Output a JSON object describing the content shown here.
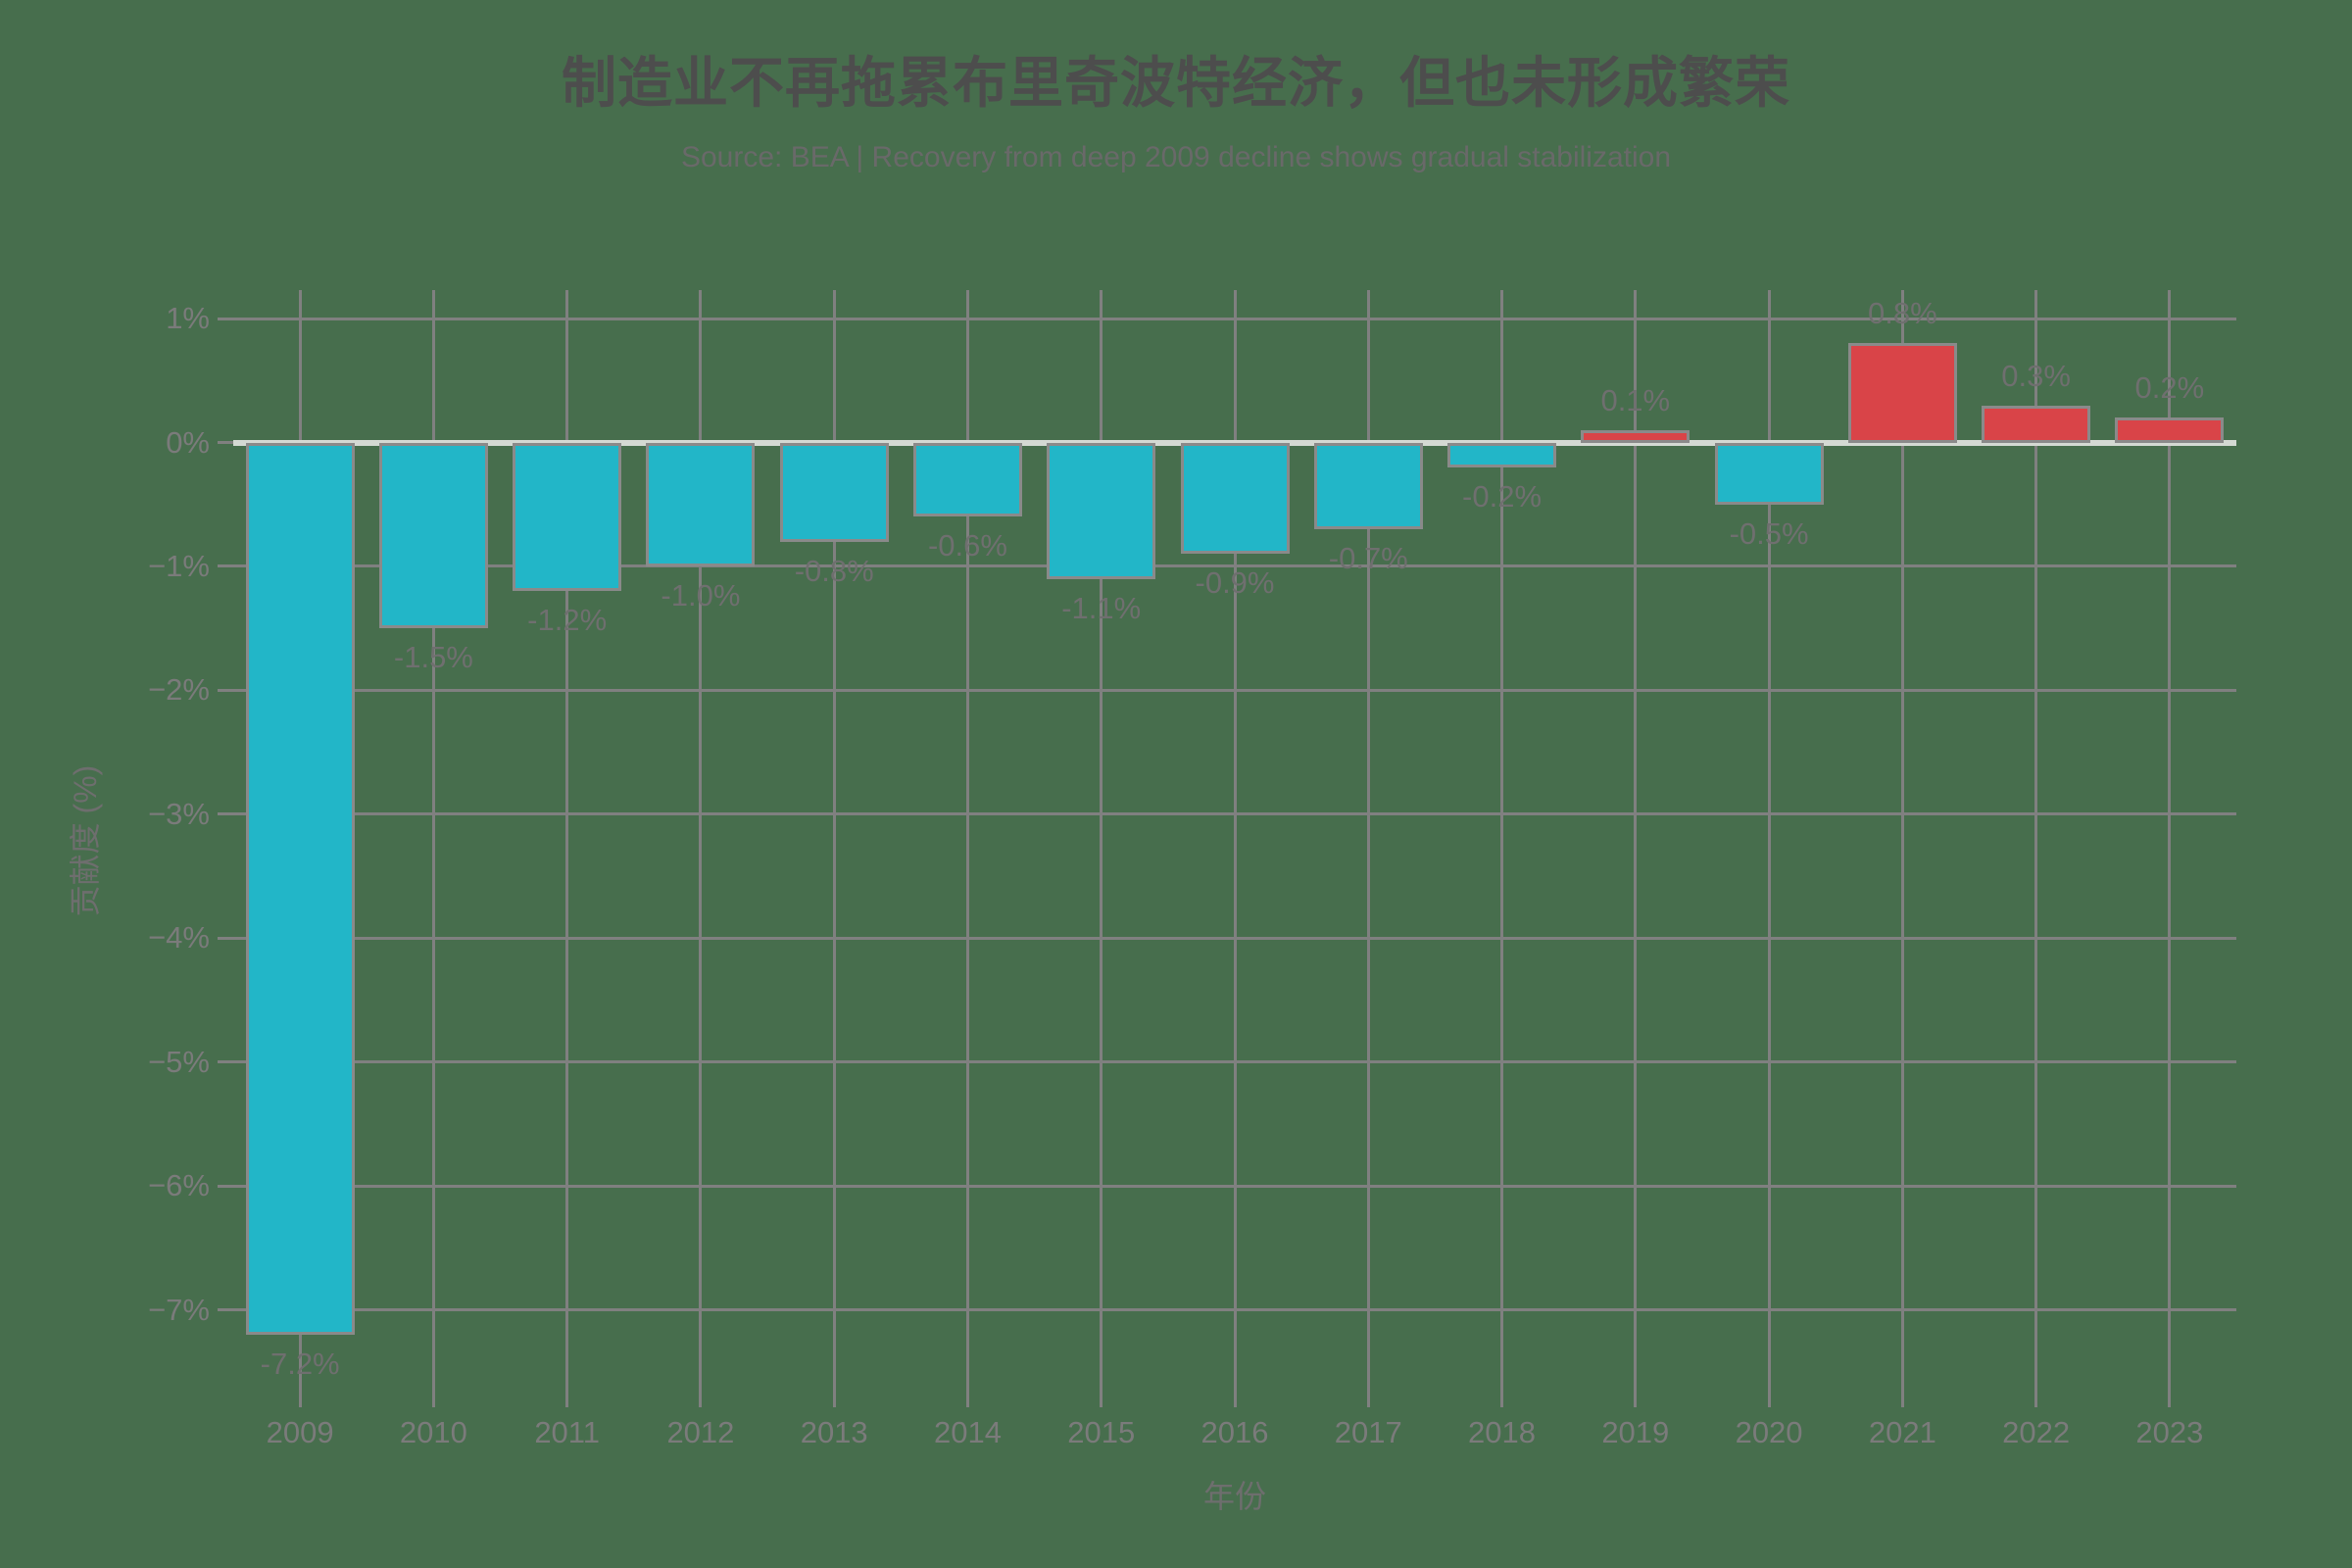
{
  "header": {
    "title": "制造业不再拖累布里奇波特经济，但也未形成繁荣",
    "subtitle": "Source: BEA | Recovery from deep 2009 decline shows gradual stabilization"
  },
  "chart_data": {
    "type": "bar",
    "title": "制造业不再拖累布里奇波特经济，但也未形成繁荣",
    "subtitle": "Source: BEA | Recovery from deep 2009 decline shows gradual stabilization",
    "xlabel": "年份",
    "ylabel": "贡献度 (%)",
    "categories": [
      "2009",
      "2010",
      "2011",
      "2012",
      "2013",
      "2014",
      "2015",
      "2016",
      "2017",
      "2018",
      "2019",
      "2020",
      "2021",
      "2022",
      "2023"
    ],
    "values": [
      -7.2,
      -1.5,
      -1.2,
      -1.0,
      -0.8,
      -0.6,
      -1.1,
      -0.9,
      -0.7,
      -0.2,
      0.1,
      -0.5,
      0.8,
      0.3,
      0.2
    ],
    "value_labels": [
      "-7.2%",
      "-1.5%",
      "-1.2%",
      "-1.0%",
      "-0.8%",
      "-0.6%",
      "-1.1%",
      "-0.9%",
      "-0.7%",
      "-0.2%",
      "0.1%",
      "-0.5%",
      "0.8%",
      "0.3%",
      "0.2%"
    ],
    "yticks": [
      1,
      0,
      -1,
      -2,
      -3,
      -4,
      -5,
      -6,
      -7
    ],
    "ytick_labels": [
      "1%",
      "0%",
      "−1%",
      "−2%",
      "−3%",
      "−4%",
      "−5%",
      "−6%",
      "−7%"
    ],
    "ylim": [
      -7.66,
      1.23
    ],
    "grid": true,
    "legend": "none",
    "colors": {
      "background": "#476e4d",
      "bar_negative": "#22b6c8",
      "bar_positive": "#d94448",
      "bar_border": "#8a8a8a",
      "gridline": "#808080",
      "zero_line": "#d4d9d3",
      "title_text": "#4d4d4d",
      "subtitle_text": "#696969",
      "tick_text": "#7b7b7b",
      "value_label_text": "#6f6f6f",
      "axis_title_text": "#6e6e6e"
    }
  }
}
